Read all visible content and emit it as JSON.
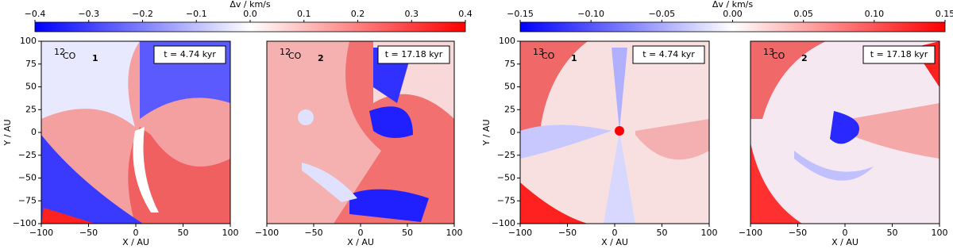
{
  "chart_data": [
    {
      "type": "colorbar",
      "label": "Δv / km/s",
      "clim": [
        -0.4,
        0.4
      ],
      "colors": [
        "#0000ff",
        "#ffffff",
        "#ff0000"
      ],
      "cticks": [
        {
          "value": -0.4,
          "label": "−0.4"
        },
        {
          "value": -0.3,
          "label": "−0.3"
        },
        {
          "value": -0.2,
          "label": "−0.2"
        },
        {
          "value": -0.1,
          "label": "−0.1"
        },
        {
          "value": 0,
          "label": "0.0"
        },
        {
          "value": 0.1,
          "label": "0.1"
        },
        {
          "value": 0.2,
          "label": "0.2"
        },
        {
          "value": 0.3,
          "label": "0.3"
        },
        {
          "value": 0.4,
          "label": "0.4"
        }
      ]
    },
    {
      "type": "colorbar",
      "label": "Δv / km/s",
      "clim": [
        -0.15,
        0.15
      ],
      "colors": [
        "#0000ff",
        "#ffffff",
        "#ff0000"
      ],
      "cticks": [
        {
          "value": -0.15,
          "label": "−0.15"
        },
        {
          "value": -0.1,
          "label": "−0.10"
        },
        {
          "value": -0.05,
          "label": "−0.05"
        },
        {
          "value": 0,
          "label": "0.00"
        },
        {
          "value": 0.05,
          "label": "0.05"
        },
        {
          "value": 0.1,
          "label": "0.10"
        },
        {
          "value": 0.15,
          "label": "0.15"
        }
      ]
    },
    {
      "type": "map",
      "isotope": "12",
      "molecule": "CO",
      "panel": "1",
      "time": "t = 4.74 kyr",
      "xlabel": "X / AU",
      "ylabel": "Y / AU",
      "xlim": [
        -100,
        100
      ],
      "ylim": [
        -100,
        100
      ],
      "xticks": [
        {
          "value": -100,
          "label": "−100"
        },
        {
          "value": -50,
          "label": "−50"
        },
        0,
        50,
        100
      ],
      "yticks": [
        {
          "value": -100,
          "label": "−100"
        },
        {
          "value": -75,
          "label": "−75"
        },
        {
          "value": -50,
          "label": "−50"
        },
        {
          "value": -25,
          "label": "−25"
        },
        0,
        25,
        50,
        75,
        100
      ]
    },
    {
      "type": "map",
      "isotope": "12",
      "molecule": "CO",
      "panel": "2",
      "time": "t = 17.18 kyr",
      "xlabel": "X / AU",
      "xlim": [
        -100,
        100
      ],
      "ylim": [
        -100,
        100
      ],
      "xticks": [
        {
          "value": -100,
          "label": "−100"
        },
        {
          "value": -50,
          "label": "−50"
        },
        0,
        50,
        100
      ]
    },
    {
      "type": "map",
      "isotope": "13",
      "molecule": "CO",
      "panel": "1",
      "time": "t = 4.74 kyr",
      "xlabel": "X / AU",
      "ylabel": "Y / AU",
      "xlim": [
        -100,
        100
      ],
      "ylim": [
        -100,
        100
      ],
      "xticks": [
        {
          "value": -100,
          "label": "−100"
        },
        {
          "value": -50,
          "label": "−50"
        },
        0,
        50,
        100
      ],
      "yticks": [
        {
          "value": -100,
          "label": "−100"
        },
        {
          "value": -75,
          "label": "−75"
        },
        {
          "value": -50,
          "label": "−50"
        },
        {
          "value": -25,
          "label": "−25"
        },
        0,
        25,
        50,
        75,
        100
      ]
    },
    {
      "type": "map",
      "isotope": "13",
      "molecule": "CO",
      "panel": "2",
      "time": "t = 17.18 kyr",
      "xlabel": "X / AU",
      "xlim": [
        -100,
        100
      ],
      "ylim": [
        -100,
        100
      ],
      "xticks": [
        {
          "value": -100,
          "label": "−100"
        },
        {
          "value": -50,
          "label": "−50"
        },
        0,
        50,
        100
      ]
    }
  ]
}
